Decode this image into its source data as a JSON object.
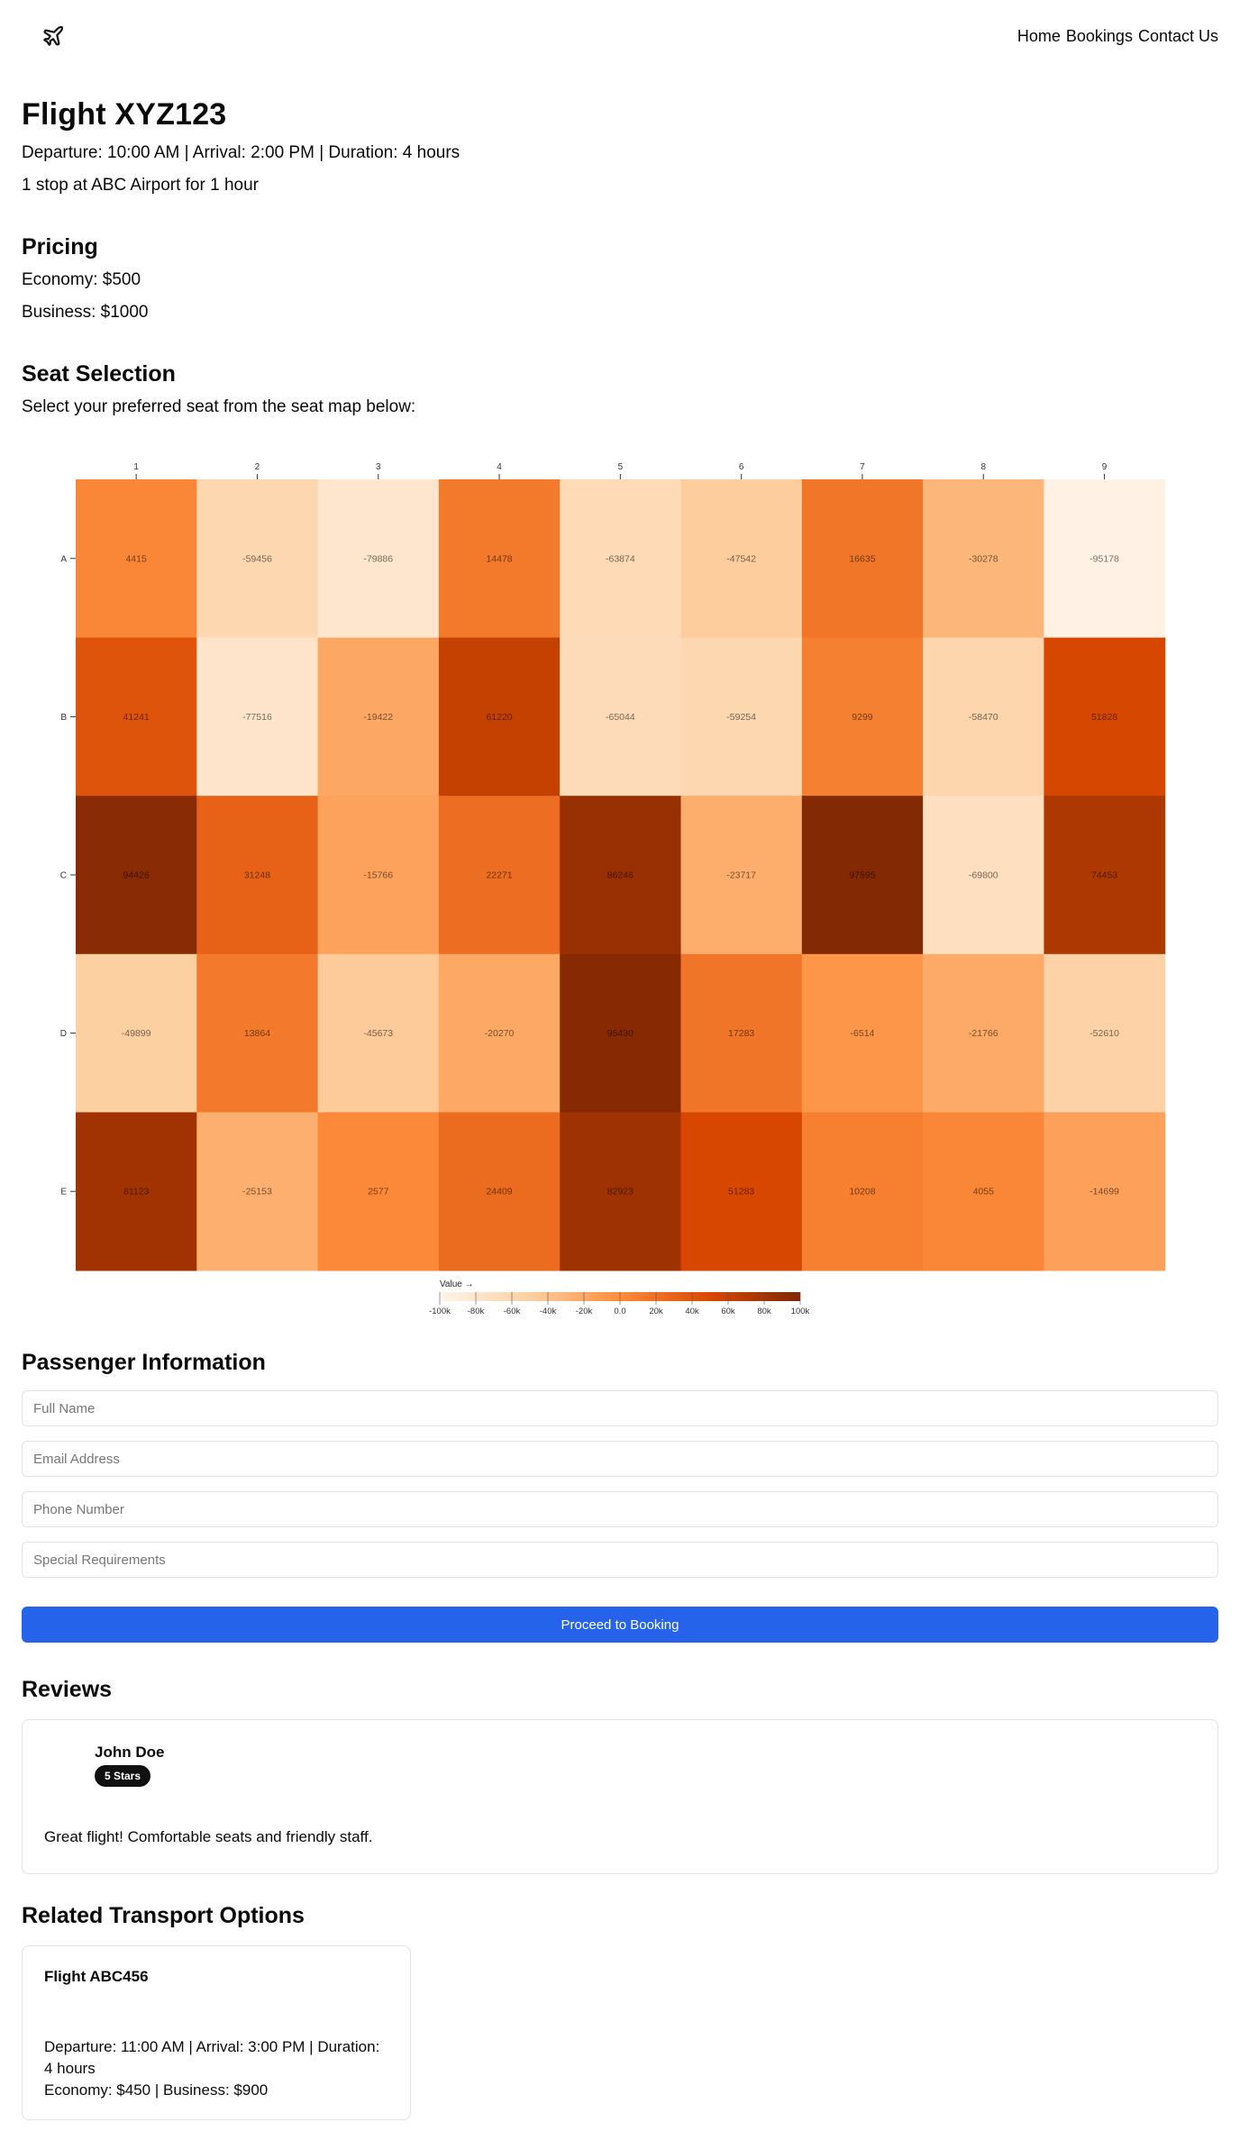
{
  "nav": {
    "links": [
      "Home",
      "Bookings",
      "Contact Us"
    ]
  },
  "flight": {
    "title": "Flight XYZ123",
    "times": "Departure: 10:00 AM | Arrival: 2:00 PM | Duration: 4 hours",
    "stops": "1 stop at ABC Airport for 1 hour"
  },
  "pricing": {
    "heading": "Pricing",
    "economy": "Economy: $500",
    "business": "Business: $1000"
  },
  "seat": {
    "heading": "Seat Selection",
    "subtitle": "Select your preferred seat from the seat map below:"
  },
  "chart_data": {
    "type": "heatmap",
    "title": "",
    "x_categories": [
      "1",
      "2",
      "3",
      "4",
      "5",
      "6",
      "7",
      "8",
      "9"
    ],
    "y_categories": [
      "A",
      "B",
      "C",
      "D",
      "E"
    ],
    "values": [
      [
        4415,
        -59456,
        -79886,
        14478,
        -63874,
        -47542,
        16635,
        -30278,
        -95178
      ],
      [
        41241,
        -77516,
        -19422,
        61220,
        -65044,
        -59254,
        9299,
        -58470,
        51828
      ],
      [
        94426,
        31248,
        -15766,
        22271,
        86246,
        -23717,
        97595,
        -69800,
        74453
      ],
      [
        -49899,
        13864,
        -45673,
        -20270,
        95430,
        17283,
        -6514,
        -21766,
        -52610
      ],
      [
        81123,
        -25153,
        2577,
        24409,
        82923,
        51283,
        10208,
        4055,
        -14699
      ]
    ],
    "color_scale": {
      "label": "Value →",
      "domain": [
        -100000,
        100000
      ],
      "scheme": "oranges",
      "ticks": [
        "-100k",
        "-80k",
        "-60k",
        "-40k",
        "-20k",
        "0.0",
        "20k",
        "40k",
        "60k",
        "80k",
        "100k"
      ]
    },
    "legend_position": "bottom-center"
  },
  "passenger": {
    "heading": "Passenger Information",
    "placeholders": [
      "Full Name",
      "Email Address",
      "Phone Number",
      "Special Requirements"
    ],
    "button": "Proceed to Booking"
  },
  "reviews": {
    "heading": "Reviews",
    "items": [
      {
        "name": "John Doe",
        "rating": "5 Stars",
        "text": "Great flight! Comfortable seats and friendly staff."
      }
    ]
  },
  "related": {
    "heading": "Related Transport Options",
    "items": [
      {
        "title": "Flight ABC456",
        "times": "Departure: 11:00 AM | Arrival: 3:00 PM | Duration: 4 hours",
        "prices": "Economy: $450 | Business: $900"
      }
    ]
  },
  "colors": {
    "primary_button": "#2563eb",
    "badge": "#111111"
  },
  "icons": {
    "logo": "plane-icon"
  }
}
